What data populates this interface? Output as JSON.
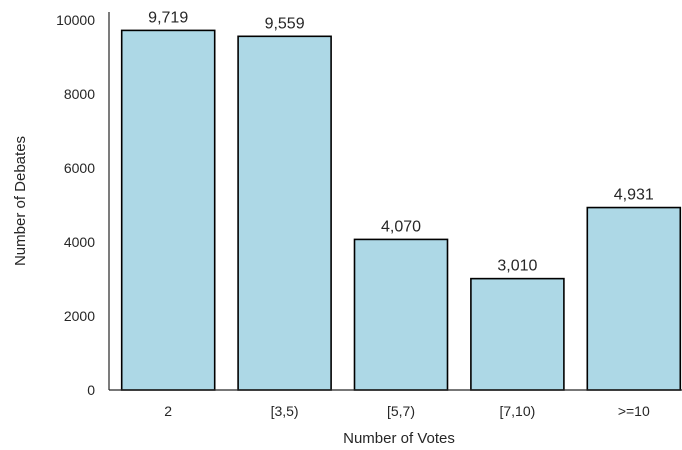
{
  "chart_data": {
    "type": "bar",
    "categories": [
      "2",
      "[3,5)",
      "[5,7)",
      "[7,10)",
      ">=10"
    ],
    "values": [
      9719,
      9559,
      4070,
      3010,
      4931
    ],
    "value_labels": [
      "9,719",
      "9,559",
      "4,070",
      "3,010",
      "4,931"
    ],
    "xlabel": "Number of Votes",
    "ylabel": "Number of Debates",
    "ylim": [
      0,
      10000
    ],
    "yticks": [
      0,
      2000,
      4000,
      6000,
      8000,
      10000
    ],
    "ytick_labels": [
      "0",
      "2000",
      "4000",
      "6000",
      "8000",
      "10000"
    ],
    "grid": false,
    "bar_color": "#add8e6",
    "bar_edge_color": "#000000"
  }
}
